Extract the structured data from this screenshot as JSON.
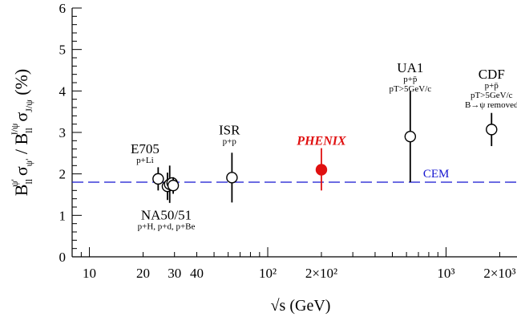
{
  "chart_data": {
    "type": "scatter",
    "title": "",
    "xlabel": "√s  (GeV)",
    "ylabel": "B_ll^ψ' σ_ψ' / B_ll^J/ψ σ_J/ψ  (%)",
    "x_scale": "log",
    "xlim": [
      8,
      2500
    ],
    "ylim": [
      0,
      6
    ],
    "x_ticks": [
      {
        "value": 10,
        "label": "10"
      },
      {
        "value": 20,
        "label": "20"
      },
      {
        "value": 30,
        "label": "30"
      },
      {
        "value": 40,
        "label": "40"
      },
      {
        "value": 100,
        "label": "10²"
      },
      {
        "value": 200,
        "label": "2×10²"
      },
      {
        "value": 1000,
        "label": "10³"
      },
      {
        "value": 2000,
        "label": "2×10³"
      }
    ],
    "y_ticks": [
      {
        "value": 0,
        "label": "0"
      },
      {
        "value": 1,
        "label": "1"
      },
      {
        "value": 2,
        "label": "2"
      },
      {
        "value": 3,
        "label": "3"
      },
      {
        "value": 4,
        "label": "4"
      },
      {
        "value": 5,
        "label": "5"
      },
      {
        "value": 6,
        "label": "6"
      }
    ],
    "points": [
      {
        "x": 24.3,
        "y": 1.88,
        "err_low": 0.28,
        "err_high": 0.28,
        "filled": false
      },
      {
        "x": 27.4,
        "y": 1.7,
        "err_low": 0.33,
        "err_high": 0.33,
        "filled": false
      },
      {
        "x": 28.2,
        "y": 1.75,
        "err_low": 0.45,
        "err_high": 0.45,
        "filled": false
      },
      {
        "x": 29.1,
        "y": 1.78,
        "err_low": 0.1,
        "err_high": 0.1,
        "filled": false
      },
      {
        "x": 29.5,
        "y": 1.72,
        "err_low": 0.2,
        "err_high": 0.2,
        "filled": false
      },
      {
        "x": 63,
        "y": 1.91,
        "err_low": 0.6,
        "err_high": 0.6,
        "filled": false
      },
      {
        "x": 200,
        "y": 2.1,
        "err_low": 0.5,
        "err_high": 0.52,
        "filled": true,
        "color": "#e01010"
      },
      {
        "x": 630,
        "y": 2.9,
        "err_low": 1.1,
        "err_high": 1.1,
        "filled": false
      },
      {
        "x": 1800,
        "y": 3.07,
        "err_low": 0.4,
        "err_high": 0.4,
        "filled": false
      }
    ],
    "reference_line": {
      "name": "CEM",
      "y": 1.8,
      "color": "#1515d0",
      "style": "dashed"
    },
    "annotations": [
      {
        "text": "E705",
        "sub": "p+Li",
        "x": 20.5,
        "y": 2.5
      },
      {
        "text": "NA50/51",
        "sub": "p+H, p+d, p+Be",
        "x": 27,
        "y": 0.9
      },
      {
        "text": "ISR",
        "sub": "p+p",
        "x": 61,
        "y": 2.95
      },
      {
        "text": "PHENIX",
        "x": 200,
        "y": 2.7,
        "color": "#e01010"
      },
      {
        "text": "UA1",
        "sub": "p+p̄",
        "sub2": "pT>5GeV/c",
        "x": 630,
        "y": 4.45
      },
      {
        "text": "CDF",
        "sub": "p+p̄",
        "sub2": "pT>5GeV/c",
        "sub3": "B→ψ removed",
        "x": 1800,
        "y": 4.3
      },
      {
        "text": "CEM",
        "x": 880,
        "y": 1.92,
        "color": "#1515d0"
      }
    ]
  }
}
